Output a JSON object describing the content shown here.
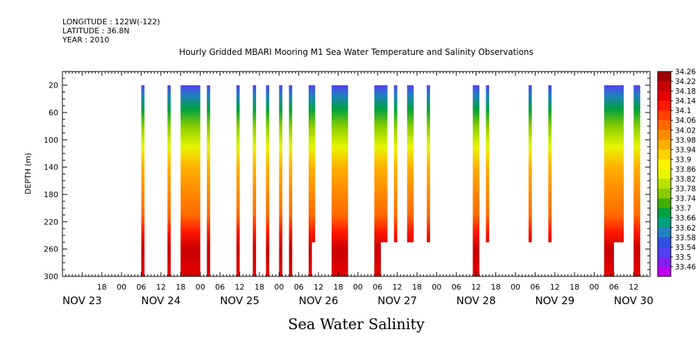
{
  "header": {
    "longitude": "LONGITUDE : 122W(-122)",
    "latitude": "LATITUDE : 36.8N",
    "year": "YEAR : 2010",
    "title": "Hourly Gridded MBARI Mooring M1 Sea Water Temperature and Salinity Observations"
  },
  "footer": {
    "label": "Sea Water Salinity"
  },
  "chart_data": {
    "type": "heatmap",
    "title": "Hourly Gridded MBARI Mooring M1 Sea Water Temperature and Salinity Observations",
    "xlabel": "",
    "ylabel": "DEPTH (m)",
    "ylim": [
      300,
      0
    ],
    "y_ticks": [
      20,
      60,
      100,
      140,
      180,
      220,
      260,
      300
    ],
    "x_range_hours": [
      "NOV 23 06:00",
      "NOV 30 17:00"
    ],
    "hour_tick_labels": [
      "18",
      "00",
      "06",
      "12",
      "18",
      "00",
      "06",
      "12",
      "18",
      "00",
      "06",
      "12",
      "18",
      "00",
      "06",
      "12",
      "18",
      "00",
      "06",
      "12",
      "18",
      "00",
      "06",
      "12",
      "18",
      "00",
      "06",
      "12"
    ],
    "date_labels": [
      "NOV 23",
      "NOV 24",
      "NOV 25",
      "NOV 26",
      "NOV 27",
      "NOV 28",
      "NOV 29",
      "NOV 30"
    ],
    "colorbar": {
      "labels": [
        "34.26",
        "34.22",
        "34.18",
        "34.14",
        "34.1",
        "34.06",
        "34.02",
        "33.98",
        "33.94",
        "33.9",
        "33.86",
        "33.82",
        "33.78",
        "33.74",
        "33.7",
        "33.66",
        "33.62",
        "33.58",
        "33.54",
        "33.5",
        "33.46"
      ],
      "colors": [
        "#a00000",
        "#c80000",
        "#e60000",
        "#ff1800",
        "#ff4000",
        "#ff6a00",
        "#ff8c00",
        "#ffb000",
        "#ffd400",
        "#fff200",
        "#e8f500",
        "#b8e000",
        "#88cc00",
        "#40b000",
        "#00a040",
        "#00a080",
        "#2080c0",
        "#3050e0",
        "#5040f0",
        "#8020f0",
        "#c000f0"
      ]
    },
    "series": [
      {
        "start": "NOV 24 06:00",
        "end": "NOV 24 07:00",
        "max_depth": 300
      },
      {
        "start": "NOV 24 14:00",
        "end": "NOV 24 15:00",
        "max_depth": 300
      },
      {
        "start": "NOV 24 18:00",
        "end": "NOV 25 00:00",
        "max_depth": 300
      },
      {
        "start": "NOV 25 02:00",
        "end": "NOV 25 03:00",
        "max_depth": 300
      },
      {
        "start": "NOV 25 11:00",
        "end": "NOV 25 12:00",
        "max_depth": 300
      },
      {
        "start": "NOV 25 16:00",
        "end": "NOV 25 17:00",
        "max_depth": 300
      },
      {
        "start": "NOV 25 20:00",
        "end": "NOV 25 21:00",
        "max_depth": 300
      },
      {
        "start": "NOV 26 00:00",
        "end": "NOV 26 01:00",
        "max_depth": 300
      },
      {
        "start": "NOV 26 03:00",
        "end": "NOV 26 04:00",
        "max_depth": 300
      },
      {
        "start": "NOV 26 09:00",
        "end": "NOV 26 10:00",
        "max_depth": 300
      },
      {
        "start": "NOV 26 10:00",
        "end": "NOV 26 11:00",
        "max_depth": 250
      },
      {
        "start": "NOV 26 16:00",
        "end": "NOV 26 21:00",
        "max_depth": 300
      },
      {
        "start": "NOV 27 05:00",
        "end": "NOV 27 07:00",
        "max_depth": 300
      },
      {
        "start": "NOV 27 07:00",
        "end": "NOV 27 09:00",
        "max_depth": 250
      },
      {
        "start": "NOV 27 11:00",
        "end": "NOV 27 12:00",
        "max_depth": 250
      },
      {
        "start": "NOV 27 15:00",
        "end": "NOV 27 17:00",
        "max_depth": 250
      },
      {
        "start": "NOV 27 21:00",
        "end": "NOV 27 22:00",
        "max_depth": 250
      },
      {
        "start": "NOV 28 11:00",
        "end": "NOV 28 13:00",
        "max_depth": 300
      },
      {
        "start": "NOV 28 15:00",
        "end": "NOV 28 16:00",
        "max_depth": 250
      },
      {
        "start": "NOV 29 04:00",
        "end": "NOV 29 05:00",
        "max_depth": 250
      },
      {
        "start": "NOV 29 10:00",
        "end": "NOV 29 11:00",
        "max_depth": 250
      },
      {
        "start": "NOV 30 03:00",
        "end": "NOV 30 06:00",
        "max_depth": 300
      },
      {
        "start": "NOV 30 05:00",
        "end": "NOV 30 09:00",
        "max_depth": 250
      },
      {
        "start": "NOV 30 12:00",
        "end": "NOV 30 14:00",
        "max_depth": 300
      }
    ]
  }
}
